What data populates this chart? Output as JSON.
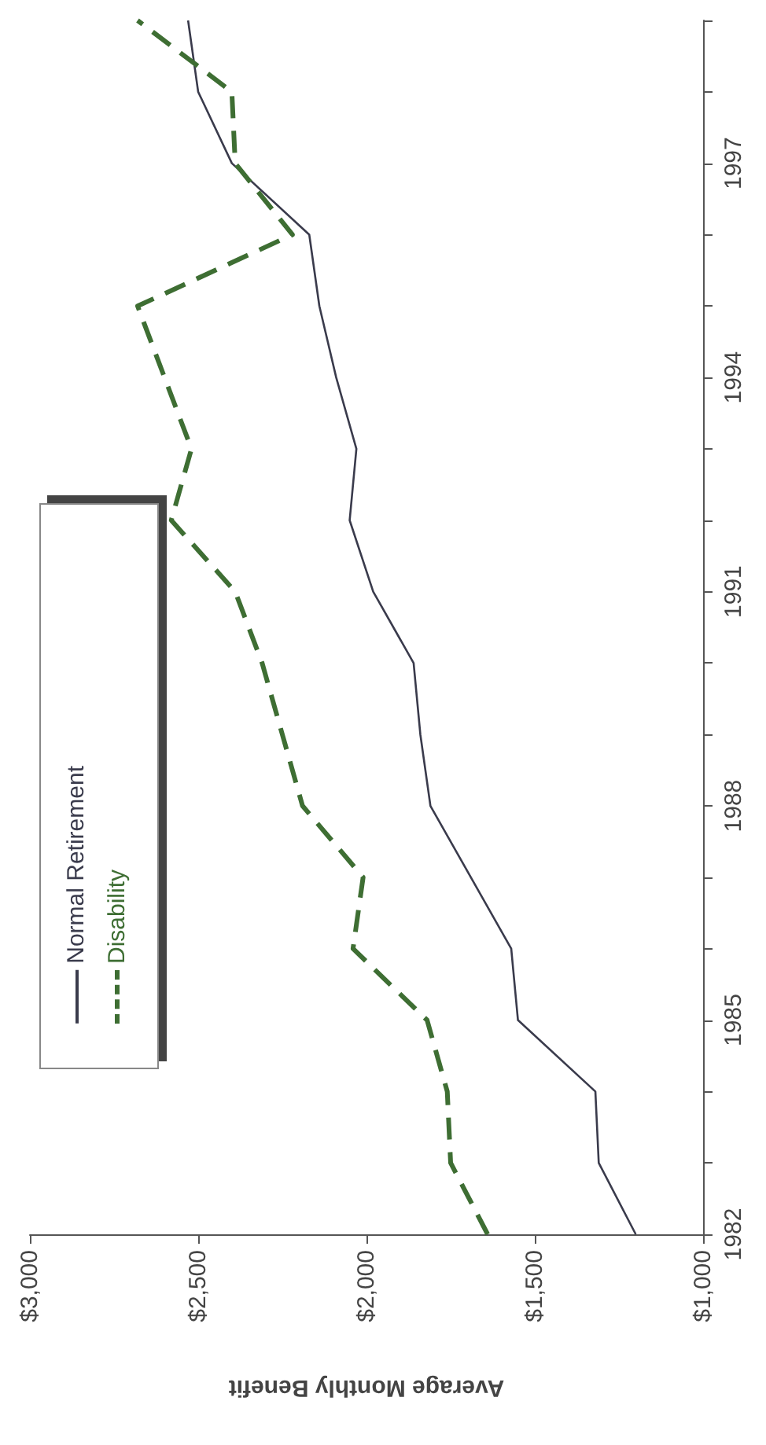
{
  "chart_data": {
    "type": "line",
    "xlabel": "Average Monthly Benefit",
    "series": [
      {
        "name": "Normal Retirement",
        "color": "#3a3b4c",
        "line_style": "solid",
        "x": [
          1200,
          1310,
          1320,
          1550,
          1570,
          1690,
          1810,
          1840,
          1860,
          1980,
          2050,
          2030,
          2090,
          2140,
          2170,
          2400,
          2500,
          2530
        ],
        "values": [
          1982,
          1983,
          1984,
          1985,
          1986,
          1987,
          1988,
          1989,
          1990,
          1991,
          1992,
          1993,
          1994,
          1995,
          1996,
          1997,
          1998,
          1999
        ]
      },
      {
        "name": "Disability",
        "color": "#3e6e33",
        "line_style": "dashed",
        "x": [
          1640,
          1750,
          1760,
          1820,
          2040,
          2010,
          2190,
          2250,
          2310,
          2390,
          2580,
          2520,
          2600,
          2680,
          2220,
          2390,
          2400,
          2680
        ],
        "values": [
          1982,
          1983,
          1984,
          1985,
          1986,
          1987,
          1988,
          1989,
          1990,
          1991,
          1992,
          1993,
          1994,
          1995,
          1996,
          1997,
          1998,
          1999
        ]
      }
    ],
    "ylim": [
      1982,
      1999
    ],
    "yticks": [
      1982,
      {
        "value": 1983,
        "label": null
      },
      {
        "value": 1984,
        "label": null
      },
      1985,
      {
        "value": 1986,
        "label": null
      },
      {
        "value": 1987,
        "label": null
      },
      1988,
      {
        "value": 1989,
        "label": null
      },
      {
        "value": 1990,
        "label": null
      },
      1991,
      {
        "value": 1992,
        "label": null
      },
      {
        "value": 1993,
        "label": null
      },
      1994,
      {
        "value": 1995,
        "label": null
      },
      {
        "value": 1996,
        "label": null
      },
      1997,
      {
        "value": 1998,
        "label": null
      },
      {
        "value": 1999,
        "label": null
      }
    ],
    "xlim": [
      3000,
      1000
    ],
    "xticks": [
      {
        "value": 1000,
        "label": "$1,000"
      },
      {
        "value": 1500,
        "label": "$1,500"
      },
      {
        "value": 2000,
        "label": "$2,000"
      },
      {
        "value": 2500,
        "label": "$2,500"
      },
      {
        "value": 3000,
        "label": "$3,000"
      }
    ],
    "grid": false,
    "legend": "left",
    "marker": "none"
  }
}
